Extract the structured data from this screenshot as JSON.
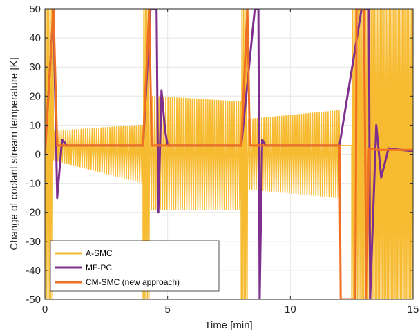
{
  "chart_data": {
    "type": "line",
    "xlabel": "Time [min]",
    "ylabel": "Change of coolant stream temperature [K]",
    "xlim": [
      0,
      15
    ],
    "ylim": [
      -50,
      50
    ],
    "x_ticks": [
      0,
      5,
      10,
      15
    ],
    "y_ticks": [
      -50,
      -40,
      -30,
      -20,
      -10,
      0,
      10,
      20,
      30,
      40,
      50
    ],
    "x_tick_labels": [
      "0",
      "5",
      "10",
      "15"
    ],
    "y_tick_labels": [
      "-50",
      "-40",
      "-30",
      "-20",
      "-10",
      "0",
      "10",
      "20",
      "30",
      "40",
      "50"
    ],
    "grid": true,
    "legend_position": "bottom-left",
    "series": [
      {
        "name": "A-SMC",
        "color": "#F7BB31",
        "segments": [
          {
            "kind": "saturated",
            "t": [
              0.0,
              0.35
            ]
          },
          {
            "kind": "oscillation",
            "t": [
              0.35,
              4.0
            ],
            "envelope_start": 8,
            "envelope_end": -10,
            "upper_start": 8,
            "upper_end": 10,
            "lower_start": -2,
            "lower_end": -10
          },
          {
            "kind": "saturated",
            "t": [
              4.0,
              4.25
            ]
          },
          {
            "kind": "oscillation",
            "t": [
              4.25,
              8.0
            ],
            "upper_start": 20,
            "upper_end": 18,
            "lower_start": -19,
            "lower_end": -19
          },
          {
            "kind": "saturated",
            "t": [
              8.0,
              8.25
            ]
          },
          {
            "kind": "oscillation",
            "t": [
              8.25,
              12.0
            ],
            "upper_start": 12,
            "upper_end": 15,
            "lower_start": -12,
            "lower_end": -15
          },
          {
            "kind": "level",
            "t": [
              12.0,
              12.5
            ],
            "value": 3
          },
          {
            "kind": "saturated",
            "t": [
              12.5,
              15.0
            ]
          }
        ]
      },
      {
        "name": "MF-PC",
        "color": "#7E2F8E",
        "key_points": [
          [
            0.0,
            0
          ],
          [
            0.35,
            50
          ],
          [
            0.5,
            -15
          ],
          [
            0.7,
            5
          ],
          [
            0.9,
            3
          ],
          [
            4.0,
            3
          ],
          [
            4.3,
            50
          ],
          [
            4.55,
            50
          ],
          [
            4.62,
            -20
          ],
          [
            4.75,
            22
          ],
          [
            4.9,
            8
          ],
          [
            5.0,
            3
          ],
          [
            8.0,
            3
          ],
          [
            8.55,
            50
          ],
          [
            8.7,
            50
          ],
          [
            8.75,
            -50
          ],
          [
            8.85,
            5
          ],
          [
            9.0,
            3
          ],
          [
            12.0,
            3
          ],
          [
            12.9,
            50
          ],
          [
            13.2,
            50
          ],
          [
            13.25,
            -50
          ],
          [
            13.5,
            10
          ],
          [
            13.7,
            -8
          ],
          [
            14.0,
            2
          ],
          [
            15.0,
            1
          ]
        ]
      },
      {
        "name": "CM-SMC (new approach)",
        "color": "#EF6F23",
        "key_points": [
          [
            0.0,
            0
          ],
          [
            0.35,
            50
          ],
          [
            0.5,
            3
          ],
          [
            4.0,
            3
          ],
          [
            4.25,
            50
          ],
          [
            4.35,
            3
          ],
          [
            8.0,
            3
          ],
          [
            8.25,
            50
          ],
          [
            8.35,
            3
          ],
          [
            12.0,
            3
          ],
          [
            12.05,
            -50
          ],
          [
            12.65,
            -50
          ],
          [
            12.7,
            50
          ],
          [
            13.0,
            50
          ],
          [
            13.1,
            -50
          ],
          [
            13.2,
            2
          ],
          [
            13.5,
            1.5
          ],
          [
            15.0,
            1.5
          ]
        ]
      }
    ]
  }
}
